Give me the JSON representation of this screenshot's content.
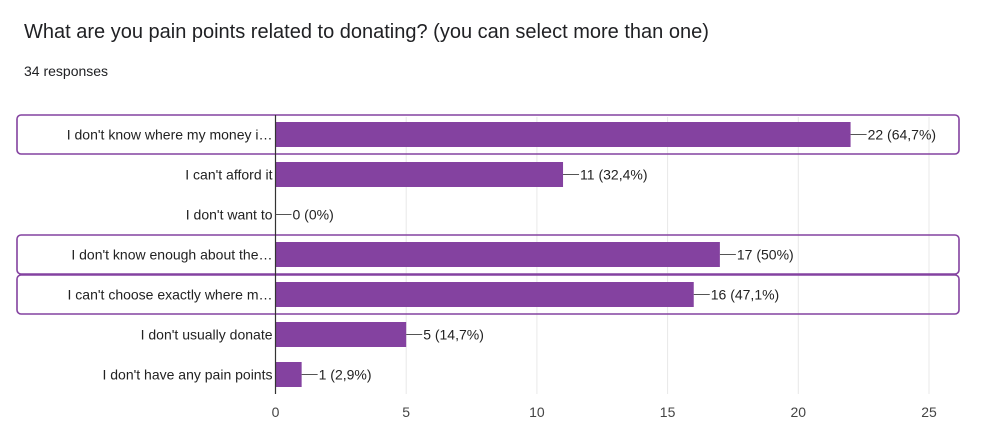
{
  "question": {
    "title": "What are you pain points related to donating? (you can select more than one)",
    "responses": "34 responses"
  },
  "colors": {
    "bar": "#8442a0",
    "highlight_border": "#8442a0",
    "grid": "#e8e8e8",
    "axis": "#333333",
    "text": "#222222"
  },
  "chart_data": {
    "type": "bar",
    "orientation": "horizontal",
    "title": "",
    "xlabel": "",
    "ylabel": "",
    "xlim": [
      0,
      25
    ],
    "x_ticks": [
      0,
      5,
      10,
      15,
      20,
      25
    ],
    "grid": true,
    "categories": [
      "I don't know where my money i…",
      "I can't afford it",
      "I don't want to",
      "I don't know enough about the…",
      "I can't choose exactly where m…",
      "I don't usually donate",
      "I don't have any pain points"
    ],
    "values": [
      22,
      11,
      0,
      17,
      16,
      5,
      1
    ],
    "data_labels": [
      "22 (64,7%)",
      "11 (32,4%)",
      "0 (0%)",
      "17 (50%)",
      "16 (47,1%)",
      "5 (14,7%)",
      "1 (2,9%)"
    ],
    "highlighted": [
      true,
      false,
      false,
      true,
      true,
      false,
      false
    ]
  }
}
